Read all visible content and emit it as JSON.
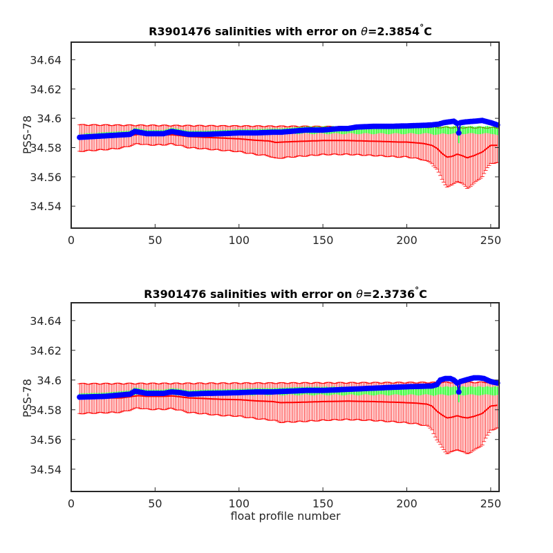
{
  "colors": {
    "measured": "#0000ff",
    "mapped_line": "#ff0000",
    "mapped_error": "#ff0000",
    "calibrated_error": "#00ff00",
    "axes": "#262626"
  },
  "chart_data": [
    {
      "type": "line",
      "title_prefix": "R3901476 salinities with error on ",
      "title_symbol": "θ",
      "title_value": "=2.3854",
      "title_degree": "°",
      "title_unit": "C",
      "xlabel": "",
      "ylabel": "PSS-78",
      "xlim": [
        0,
        255
      ],
      "ylim": [
        34.525,
        34.652
      ],
      "xticks": [
        "0",
        "50",
        "100",
        "150",
        "200",
        "250"
      ],
      "yticks": [
        "34.54",
        "34.56",
        "34.58",
        "34.6",
        "34.62",
        "34.64"
      ],
      "x_range": [
        5,
        254
      ],
      "series": [
        {
          "role": "measured",
          "knots_x": [
            5,
            20,
            35,
            38,
            45,
            55,
            60,
            65,
            70,
            80,
            90,
            100,
            110,
            120,
            125,
            130,
            140,
            150,
            160,
            165,
            170,
            180,
            190,
            200,
            210,
            215,
            219,
            222,
            225,
            228,
            230,
            231,
            232,
            235,
            240,
            245,
            250,
            254
          ],
          "knots_y": [
            34.587,
            34.588,
            34.589,
            34.591,
            34.5895,
            34.5895,
            34.591,
            34.59,
            34.589,
            34.589,
            34.5895,
            34.59,
            34.59,
            34.5905,
            34.5905,
            34.591,
            34.592,
            34.592,
            34.593,
            34.593,
            34.594,
            34.5945,
            34.5945,
            34.5948,
            34.5952,
            34.5955,
            34.596,
            34.597,
            34.5975,
            34.598,
            34.5965,
            34.59,
            34.597,
            34.5975,
            34.598,
            34.5985,
            34.597,
            34.5955
          ]
        },
        {
          "role": "mapped",
          "knots_x": [
            5,
            20,
            30,
            40,
            45,
            55,
            60,
            65,
            70,
            80,
            90,
            100,
            110,
            118,
            122,
            126,
            135,
            150,
            165,
            175,
            185,
            195,
            200,
            210,
            215,
            218,
            221,
            224,
            227,
            230,
            233,
            236,
            240,
            245,
            250,
            254
          ],
          "knots_y": [
            34.5865,
            34.587,
            34.5875,
            34.589,
            34.5885,
            34.5885,
            34.5888,
            34.5882,
            34.5875,
            34.587,
            34.5865,
            34.586,
            34.585,
            34.5845,
            34.5835,
            34.5838,
            34.5842,
            34.5848,
            34.5848,
            34.5845,
            34.5842,
            34.5838,
            34.5838,
            34.5828,
            34.5815,
            34.5795,
            34.576,
            34.5735,
            34.574,
            34.5755,
            34.5745,
            34.573,
            34.5745,
            34.577,
            34.5815,
            34.5815
          ]
        }
      ],
      "mapped_error_top": 34.5955,
      "mapped_error_top_end": 34.5935,
      "calibrated_error_top": 34.5945,
      "calibrated_error_bottom": 34.5895
    },
    {
      "type": "line",
      "title_prefix": "R3901476 salinities with error on ",
      "title_symbol": "θ",
      "title_value": "=2.3736",
      "title_degree": "°",
      "title_unit": "C",
      "xlabel": "float profile number",
      "ylabel": "PSS-78",
      "xlim": [
        0,
        255
      ],
      "ylim": [
        34.525,
        34.652
      ],
      "xticks": [
        "0",
        "50",
        "100",
        "150",
        "200",
        "250"
      ],
      "yticks": [
        "34.54",
        "34.56",
        "34.58",
        "34.6",
        "34.62",
        "34.64"
      ],
      "x_range": [
        5,
        254
      ],
      "series": [
        {
          "role": "measured",
          "knots_x": [
            5,
            20,
            35,
            38,
            45,
            55,
            60,
            65,
            70,
            80,
            90,
            100,
            110,
            120,
            130,
            140,
            150,
            160,
            170,
            180,
            190,
            200,
            210,
            215,
            218,
            220,
            223,
            226,
            228,
            230,
            231,
            232,
            235,
            240,
            243,
            246,
            250,
            254
          ],
          "knots_y": [
            34.5885,
            34.589,
            34.5905,
            34.5925,
            34.591,
            34.591,
            34.592,
            34.5915,
            34.5905,
            34.591,
            34.5912,
            34.5915,
            34.592,
            34.592,
            34.5925,
            34.593,
            34.593,
            34.5935,
            34.594,
            34.5945,
            34.595,
            34.5955,
            34.5958,
            34.596,
            34.597,
            34.6,
            34.601,
            34.601,
            34.6,
            34.598,
            34.592,
            34.599,
            34.6,
            34.6015,
            34.6015,
            34.601,
            34.599,
            34.598
          ]
        },
        {
          "role": "mapped",
          "knots_x": [
            5,
            20,
            30,
            40,
            45,
            55,
            60,
            65,
            70,
            80,
            90,
            100,
            110,
            120,
            125,
            135,
            150,
            165,
            180,
            195,
            205,
            212,
            215,
            218,
            221,
            224,
            227,
            230,
            233,
            236,
            240,
            245,
            250,
            254
          ],
          "knots_y": [
            34.5875,
            34.5878,
            34.588,
            34.5895,
            34.589,
            34.589,
            34.5893,
            34.5887,
            34.588,
            34.5875,
            34.587,
            34.5868,
            34.586,
            34.5855,
            34.5848,
            34.585,
            34.5855,
            34.5858,
            34.5855,
            34.585,
            34.5845,
            34.5838,
            34.5825,
            34.579,
            34.5765,
            34.5745,
            34.575,
            34.576,
            34.575,
            34.5745,
            34.5755,
            34.5775,
            34.5825,
            34.583
          ]
        }
      ],
      "mapped_error_top": 34.5975,
      "mapped_error_top_end": 34.5985,
      "calibrated_error_top": 34.5955,
      "calibrated_error_bottom": 34.59
    }
  ]
}
